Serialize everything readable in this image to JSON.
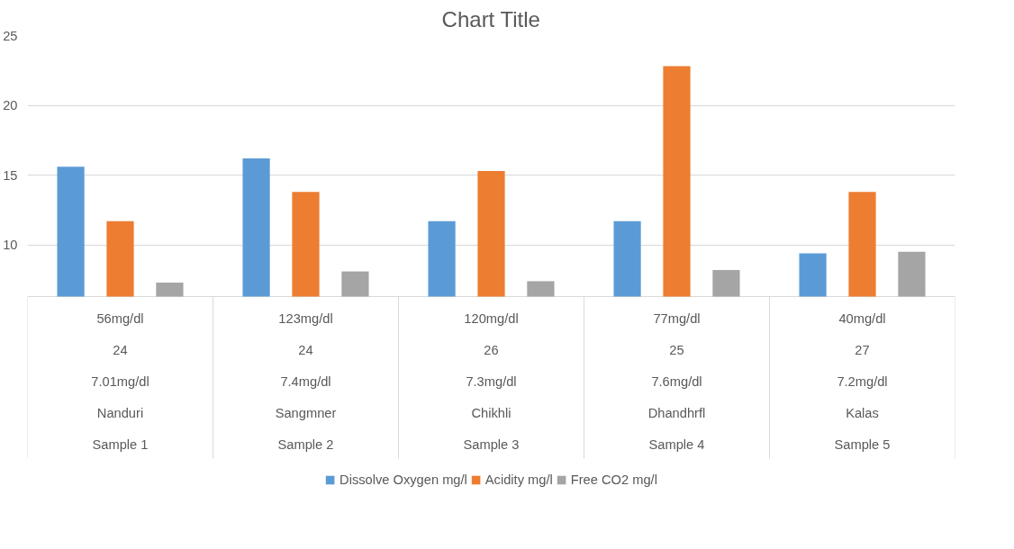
{
  "chart_data": {
    "type": "bar",
    "title": "Chart Title",
    "categories": [
      "56mg/dl\n24\n7.01mg/dl\nNanduri\nSample 1",
      "123mg/dl\n24\n7.4mg/dl\nSangmner\nSample 2",
      "120mg/dl\n26\n7.3mg/dl\nChikhli\nSample 3",
      "77mg/dl\n25\n7.6mg/dl\nDhandhrfl\nSample 4",
      "40mg/dl\n27\n7.2mg/dl\nKalas\nSample 5"
    ],
    "series": [
      {
        "name": "Dissolve Oxygen mg/l",
        "color": "#5b9bd5",
        "values": [
          15.6,
          16.2,
          11.7,
          11.7,
          9.4
        ]
      },
      {
        "name": "Acidity mg/l",
        "color": "#ed7d31",
        "values": [
          11.7,
          13.8,
          15.3,
          22.8,
          13.8
        ]
      },
      {
        "name": "Free CO2 mg/l",
        "color": "#a5a5a5",
        "values": [
          7.3,
          8.1,
          7.4,
          8.2,
          9.5
        ]
      }
    ],
    "ylim": [
      6.3,
      25
    ],
    "yticks": [
      10,
      15,
      20,
      25
    ],
    "grid": "y",
    "legend": "bottom"
  }
}
